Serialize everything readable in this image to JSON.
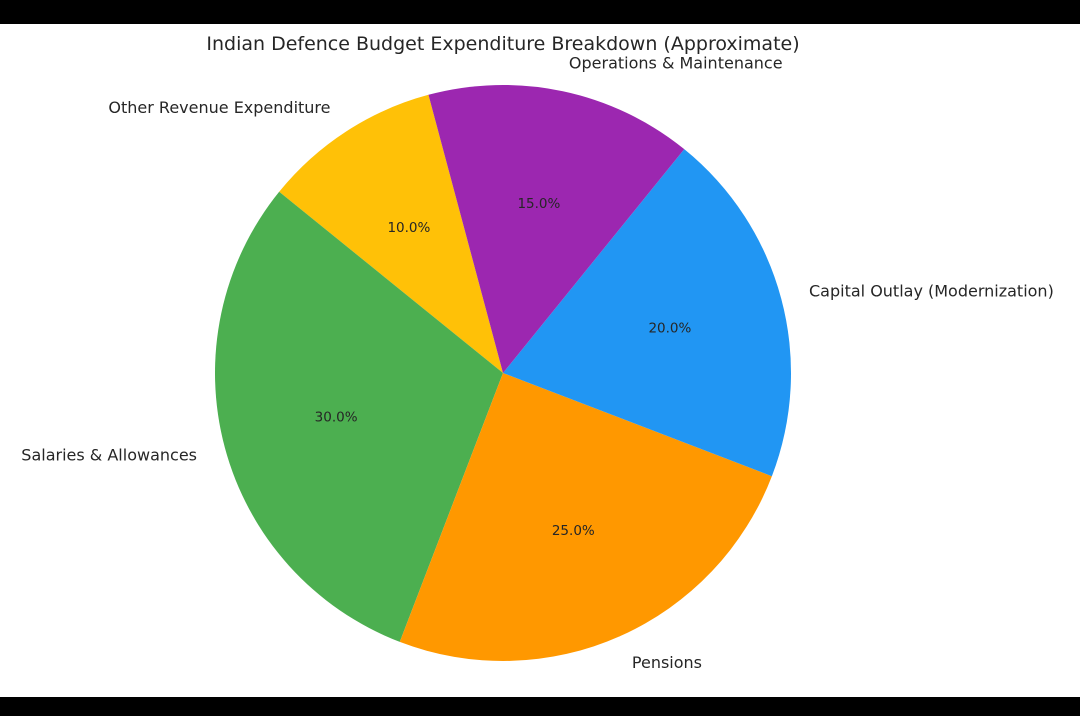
{
  "chart_data": {
    "type": "pie",
    "title": "Indian Defence Budget Expenditure Breakdown (Approximate)",
    "start_angle_deg": 105,
    "direction": "counterclockwise",
    "slices": [
      {
        "label": "Other Revenue Expenditure",
        "value": 10,
        "pct_label": "10.0%",
        "color": "#FFC107"
      },
      {
        "label": "Salaries & Allowances",
        "value": 30,
        "pct_label": "30.0%",
        "color": "#4CAF50"
      },
      {
        "label": "Pensions",
        "value": 25,
        "pct_label": "25.0%",
        "color": "#FF9800"
      },
      {
        "label": "Capital Outlay (Modernization)",
        "value": 20,
        "pct_label": "20.0%",
        "color": "#2196F3"
      },
      {
        "label": "Operations & Maintenance",
        "value": 15,
        "pct_label": "15.0%",
        "color": "#9C27B0"
      }
    ]
  }
}
